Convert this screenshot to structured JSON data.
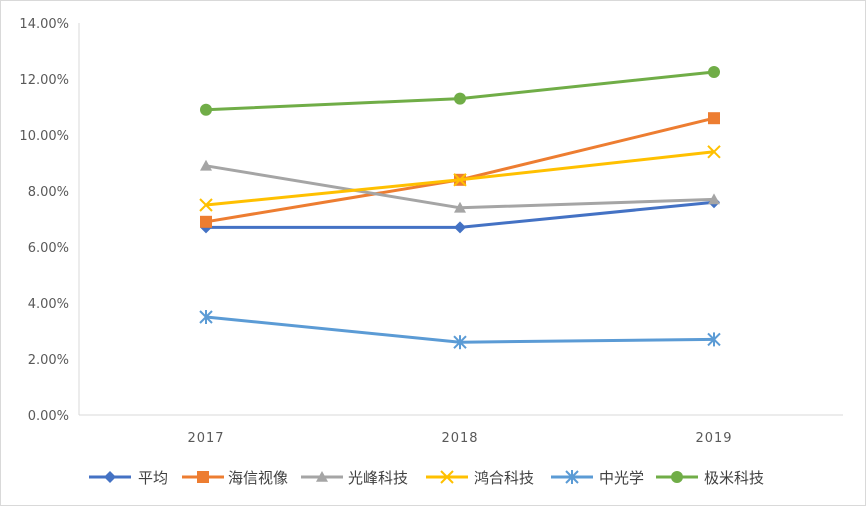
{
  "chart_data": {
    "type": "line",
    "title": "",
    "xlabel": "",
    "ylabel": "",
    "categories": [
      "2017",
      "2018",
      "2019"
    ],
    "ylim": [
      0,
      0.14
    ],
    "ytick_step": 0.02,
    "yticks": [
      "0.00%",
      "2.00%",
      "4.00%",
      "6.00%",
      "8.00%",
      "10.00%",
      "12.00%",
      "14.00%"
    ],
    "grid": false,
    "legend_position": "bottom",
    "series": [
      {
        "name": "平均",
        "values": [
          0.067,
          0.067,
          0.076
        ],
        "color": "#4472C4",
        "marker": "diamond"
      },
      {
        "name": "海信视像",
        "values": [
          0.069,
          0.084,
          0.106
        ],
        "color": "#ED7D31",
        "marker": "square"
      },
      {
        "name": "光峰科技",
        "values": [
          0.089,
          0.074,
          0.077
        ],
        "color": "#A5A5A5",
        "marker": "triangle"
      },
      {
        "name": "鸿合科技",
        "values": [
          0.075,
          0.084,
          0.094
        ],
        "color": "#FFC000",
        "marker": "x"
      },
      {
        "name": "中光学",
        "values": [
          0.035,
          0.026,
          0.027
        ],
        "color": "#5B9BD5",
        "marker": "star"
      },
      {
        "name": "极米科技",
        "values": [
          0.109,
          0.113,
          0.1225
        ],
        "color": "#70AD47",
        "marker": "circle"
      }
    ]
  }
}
